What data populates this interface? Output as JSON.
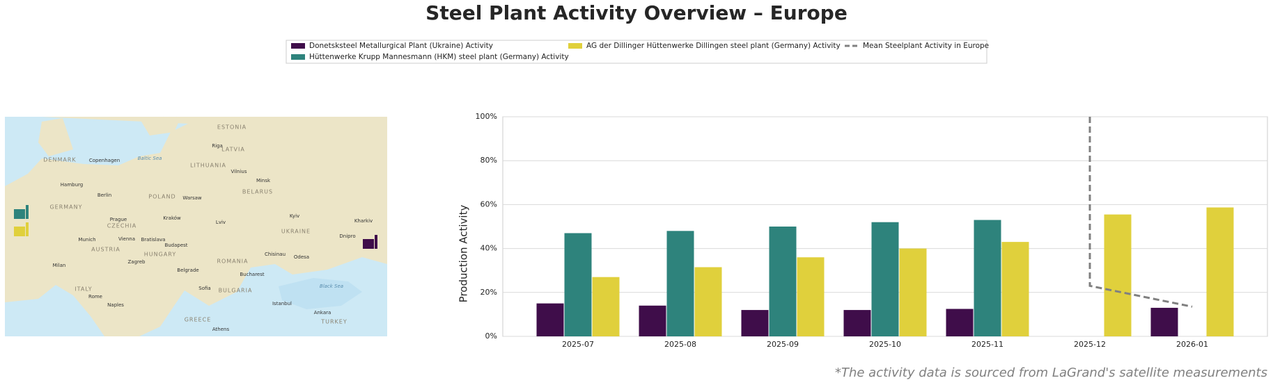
{
  "chart_data": {
    "type": "bar",
    "title": "Steel Plant Activity Overview – Europe",
    "y_label": "Production Activity",
    "footnote": "*The activity data is sourced from LaGrand's satellite measurements",
    "categories": [
      "2025-07",
      "2025-08",
      "2025-09",
      "2025-10",
      "2025-11",
      "2025-12",
      "2026-01"
    ],
    "series": [
      {
        "name": "Donetsksteel Metallurgical Plant (Ukraine) Activity",
        "color": "#3f0d4a",
        "values": [
          15,
          14,
          12,
          12,
          12.5,
          null,
          13
        ]
      },
      {
        "name": "Hüttenwerke Krupp Mannesmann (HKM) steel plant (Germany) Activity",
        "color": "#2e837c",
        "values": [
          47,
          48,
          50,
          52,
          53,
          null,
          null
        ]
      },
      {
        "name": "AG der Dillinger Hüttenwerke Dillingen steel plant (Germany) Activity",
        "color": "#e0d03c",
        "values": [
          27,
          31.5,
          36,
          40,
          43,
          55.5,
          58.7
        ]
      }
    ],
    "lines": [
      {
        "name": "Mean Steelplant Activity in Europe",
        "color": "#808080",
        "x": [
          "2025-12",
          "2025-12",
          "2026-01"
        ],
        "values": [
          100,
          23,
          13.5
        ]
      }
    ],
    "ylim": [
      0,
      100
    ],
    "yticks": [
      {
        "value": 0,
        "label": "0%"
      },
      {
        "value": 20,
        "label": "20%"
      },
      {
        "value": 40,
        "label": "40%"
      },
      {
        "value": 60,
        "label": "60%"
      },
      {
        "value": 80,
        "label": "80%"
      },
      {
        "value": 100,
        "label": "100%"
      }
    ],
    "grid": true
  },
  "map": {
    "labels": [
      "ESTONIA",
      "LATVIA",
      "Riga",
      "LITHUANIA",
      "Vilnius",
      "Minsk",
      "BELARUS",
      "DENMARK",
      "Copenhagen",
      "Baltic Sea",
      "Hamburg",
      "Berlin",
      "POLAND",
      "Warsaw",
      "GERMANY",
      "Prague",
      "CZECHIA",
      "Kraków",
      "Lviv",
      "Kyiv",
      "UKRAINE",
      "Kharkiv",
      "Dnipro",
      "Munich",
      "Vienna",
      "Bratislava",
      "Budapest",
      "AUSTRIA",
      "HUNGARY",
      "Milan",
      "Zagreb",
      "ROMANIA",
      "Bucharest",
      "Belgrade",
      "Chisinau",
      "Odesa",
      "Black Sea",
      "Sofia",
      "BULGARIA",
      "Rome",
      "ITALY",
      "Naples",
      "Istanbul",
      "Ankara",
      "TURKEY",
      "GREECE",
      "Athens"
    ]
  }
}
